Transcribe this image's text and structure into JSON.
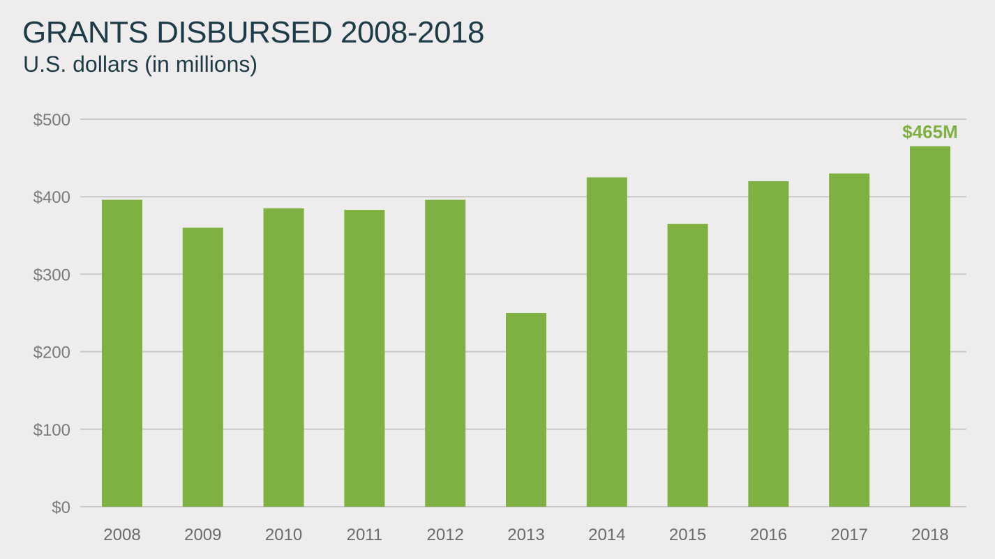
{
  "header": {
    "title": "GRANTS DISBURSED 2008-2018",
    "subtitle": "U.S. dollars (in millions)"
  },
  "colors": {
    "bar": "#7fb042",
    "callout": "#7fb042",
    "title": "#1d3c47"
  },
  "chart_data": {
    "type": "bar",
    "title": "GRANTS DISBURSED 2008-2018",
    "subtitle": "U.S. dollars (in millions)",
    "categories": [
      "2008",
      "2009",
      "2010",
      "2011",
      "2012",
      "2013",
      "2014",
      "2015",
      "2016",
      "2017",
      "2018"
    ],
    "values": [
      396,
      360,
      385,
      383,
      396,
      250,
      425,
      365,
      420,
      430,
      465
    ],
    "ylim": [
      0,
      500
    ],
    "yticks": [
      0,
      100,
      200,
      300,
      400,
      500
    ],
    "ytick_labels": [
      "$0",
      "$100",
      "$200",
      "$300",
      "$400",
      "$500"
    ],
    "grid": true,
    "annotation": {
      "category": "2018",
      "text": "$465M"
    }
  }
}
